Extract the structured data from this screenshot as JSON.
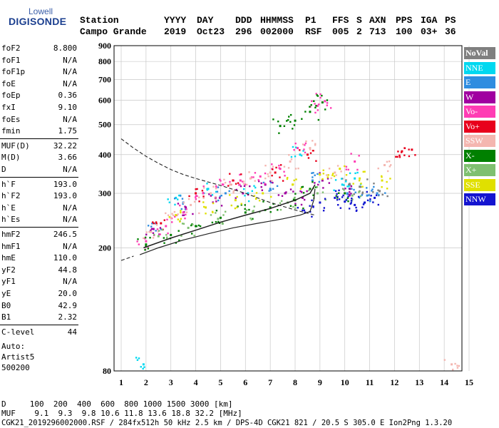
{
  "header": {
    "brand_top": "Lowell",
    "brand": "DIGISONDE",
    "col_labels": [
      "Station",
      "YYYY",
      "DAY",
      "DDD",
      "HHMMSS",
      "P1",
      "FFS",
      "S",
      "AXN",
      "PPS",
      "IGA",
      "PS"
    ],
    "col_values": [
      "Campo Grande",
      "2019",
      "Oct23",
      "296",
      "002000",
      "RSF",
      "005",
      "2",
      "713",
      "100",
      "03+",
      "36"
    ]
  },
  "params": {
    "group1": [
      {
        "name": "foF2",
        "value": "8.800"
      },
      {
        "name": "foF1",
        "value": "N/A"
      },
      {
        "name": "foF1p",
        "value": "N/A"
      },
      {
        "name": "foE",
        "value": "N/A"
      },
      {
        "name": "foEp",
        "value": "0.36"
      },
      {
        "name": "fxI",
        "value": "9.10"
      },
      {
        "name": "foEs",
        "value": "N/A"
      },
      {
        "name": "fmin",
        "value": "1.75"
      }
    ],
    "group2": [
      {
        "name": "MUF(D)",
        "value": "32.22"
      },
      {
        "name": "M(D)",
        "value": "3.66"
      },
      {
        "name": "D",
        "value": "N/A"
      }
    ],
    "group3": [
      {
        "name": "h`F",
        "value": "193.0"
      },
      {
        "name": "h`F2",
        "value": "193.0"
      },
      {
        "name": "h`E",
        "value": "N/A"
      },
      {
        "name": "h`Es",
        "value": "N/A"
      }
    ],
    "group4": [
      {
        "name": "hmF2",
        "value": "246.5"
      },
      {
        "name": "hmF1",
        "value": "N/A"
      },
      {
        "name": "hmE",
        "value": "110.0"
      },
      {
        "name": "yF2",
        "value": "44.8"
      },
      {
        "name": "yF1",
        "value": "N/A"
      },
      {
        "name": "yE",
        "value": "20.0"
      },
      {
        "name": "B0",
        "value": "42.9"
      },
      {
        "name": "B1",
        "value": "2.32"
      }
    ],
    "group5": [
      {
        "name": "C-level",
        "value": "44"
      }
    ],
    "notes": [
      "Auto:",
      "Artist5",
      "500200"
    ]
  },
  "legend": [
    {
      "label": "NoVal",
      "color": "#7f7f7f"
    },
    {
      "label": "NNE",
      "color": "#00d8f0"
    },
    {
      "label": "E",
      "color": "#2f8de0"
    },
    {
      "label": "W",
      "color": "#a000a0"
    },
    {
      "label": "Vo-",
      "color": "#ff3cb4"
    },
    {
      "label": "Vo+",
      "color": "#e8001c"
    },
    {
      "label": "SSW",
      "color": "#f4b6b0"
    },
    {
      "label": "X-",
      "color": "#008000"
    },
    {
      "label": "X+",
      "color": "#7fc070"
    },
    {
      "label": "SSE",
      "color": "#e0e000"
    },
    {
      "label": "NNW",
      "color": "#1414d0"
    }
  ],
  "footer": {
    "line1": "D     100  200  400  600  800 1000 1500 3000 [km]",
    "line2": "MUF    9.1  9.3  9.8 10.6 11.8 13.6 18.8 32.2 [MHz]",
    "line3": "CGK21_2019296002000.RSF / 284fx512h 50 kHz 2.5 km / DPS-4D CGK21 821 / 20.5 S 305.0 E Ion2Png 1.3.20"
  },
  "chart_data": {
    "type": "scatter",
    "title": "",
    "xlabel": "",
    "ylabel": "",
    "xlim": [
      1,
      15
    ],
    "ylim": [
      80,
      900
    ],
    "y_scale": "log",
    "x_ticks": [
      1,
      2,
      3,
      4,
      5,
      6,
      7,
      8,
      9,
      10,
      11,
      12,
      13,
      14,
      15
    ],
    "y_ticks": [
      80,
      200,
      300,
      400,
      500,
      600,
      700,
      800,
      900
    ],
    "grid": true,
    "legend_position": "right",
    "series": [
      {
        "name": "NoVal",
        "color": "#7f7f7f",
        "points": [
          [
            10.2,
            320
          ],
          [
            10.6,
            315
          ],
          [
            11.4,
            305
          ]
        ]
      },
      {
        "name": "NNE",
        "color": "#00d8f0",
        "points": [
          [
            1.9,
            84
          ],
          [
            3.2,
            290
          ],
          [
            4.5,
            310
          ],
          [
            6.1,
            300
          ],
          [
            8.2,
            400
          ],
          [
            9.9,
            320
          ],
          [
            10.4,
            335
          ]
        ]
      },
      {
        "name": "E",
        "color": "#2f8de0",
        "points": [
          [
            2.4,
            240
          ],
          [
            3.5,
            280
          ],
          [
            5.2,
            300
          ],
          [
            7.0,
            310
          ],
          [
            8.7,
            330
          ],
          [
            10.1,
            300
          ],
          [
            10.9,
            295
          ],
          [
            11.3,
            300
          ]
        ]
      },
      {
        "name": "W",
        "color": "#a000a0",
        "points": [
          [
            2.3,
            230
          ],
          [
            3.6,
            270
          ],
          [
            4.8,
            290
          ],
          [
            5.9,
            300
          ],
          [
            6.8,
            320
          ],
          [
            7.6,
            300
          ],
          [
            8.3,
            290
          ],
          [
            9.1,
            330
          ],
          [
            10.2,
            310
          ]
        ]
      },
      {
        "name": "Vo-",
        "color": "#ff3cb4",
        "points": [
          [
            2.0,
            210
          ],
          [
            2.8,
            235
          ],
          [
            3.5,
            260
          ],
          [
            4.3,
            300
          ],
          [
            5.1,
            320
          ],
          [
            5.8,
            330
          ],
          [
            6.6,
            340
          ],
          [
            7.4,
            360
          ],
          [
            8.1,
            420
          ],
          [
            8.9,
            575
          ],
          [
            9.2,
            595
          ],
          [
            10.4,
            380
          ]
        ]
      },
      {
        "name": "Vo+",
        "color": "#e8001c",
        "points": [
          [
            2.6,
            240
          ],
          [
            4.0,
            300
          ],
          [
            5.5,
            330
          ],
          [
            7.2,
            350
          ],
          [
            8.5,
            400
          ],
          [
            12.3,
            410
          ],
          [
            12.7,
            415
          ]
        ]
      },
      {
        "name": "SSW",
        "color": "#f4b6b0",
        "points": [
          [
            2.2,
            225
          ],
          [
            3.0,
            250
          ],
          [
            3.8,
            275
          ],
          [
            4.6,
            300
          ],
          [
            5.4,
            320
          ],
          [
            6.2,
            335
          ],
          [
            7.0,
            350
          ],
          [
            7.8,
            380
          ],
          [
            8.6,
            420
          ],
          [
            9.6,
            350
          ],
          [
            11.6,
            370
          ],
          [
            14.3,
            84
          ]
        ]
      },
      {
        "name": "X-",
        "color": "#008000",
        "points": [
          [
            2.0,
            205
          ],
          [
            3.0,
            220
          ],
          [
            4.0,
            235
          ],
          [
            5.0,
            250
          ],
          [
            6.0,
            260
          ],
          [
            7.0,
            270
          ],
          [
            8.0,
            285
          ],
          [
            8.6,
            310
          ],
          [
            7.4,
            495
          ],
          [
            8.0,
            515
          ],
          [
            8.6,
            550
          ],
          [
            9.1,
            590
          ],
          [
            10.0,
            300
          ]
        ]
      },
      {
        "name": "X+",
        "color": "#7fc070",
        "points": [
          [
            2.5,
            218
          ],
          [
            3.7,
            232
          ],
          [
            4.9,
            248
          ],
          [
            6.3,
            262
          ],
          [
            7.7,
            280
          ],
          [
            8.9,
            300
          ],
          [
            10.3,
            295
          ]
        ]
      },
      {
        "name": "SSE",
        "color": "#e0e000",
        "points": [
          [
            3.2,
            255
          ],
          [
            4.4,
            270
          ],
          [
            5.6,
            285
          ],
          [
            6.7,
            300
          ],
          [
            7.9,
            320
          ],
          [
            9.0,
            345
          ],
          [
            9.8,
            360
          ],
          [
            10.6,
            335
          ],
          [
            11.5,
            330
          ]
        ]
      },
      {
        "name": "NNW",
        "color": "#1414d0",
        "points": [
          [
            8.4,
            260
          ],
          [
            9.0,
            280
          ],
          [
            9.6,
            290
          ],
          [
            10.0,
            282
          ],
          [
            10.4,
            275
          ],
          [
            10.8,
            280
          ],
          [
            11.2,
            290
          ]
        ]
      }
    ],
    "profile_curve": [
      [
        1.75,
        190
      ],
      [
        2.5,
        200
      ],
      [
        3.5,
        212
      ],
      [
        4.5,
        222
      ],
      [
        5.5,
        232
      ],
      [
        6.5,
        240
      ],
      [
        7.5,
        248
      ],
      [
        8.2,
        255
      ],
      [
        8.6,
        262
      ],
      [
        8.75,
        285
      ],
      [
        8.8,
        310
      ]
    ],
    "trace_curve": [
      [
        1.9,
        200
      ],
      [
        3,
        215
      ],
      [
        4,
        228
      ],
      [
        5,
        242
      ],
      [
        6,
        255
      ],
      [
        7,
        268
      ],
      [
        8,
        285
      ],
      [
        8.6,
        300
      ],
      [
        8.8,
        320
      ]
    ],
    "dashed_curve": [
      [
        1,
        450
      ],
      [
        1.5,
        420
      ],
      [
        2,
        395
      ],
      [
        2.5,
        375
      ],
      [
        3,
        358
      ],
      [
        3.5,
        345
      ],
      [
        4,
        335
      ],
      [
        5,
        318
      ],
      [
        6,
        300
      ],
      [
        7,
        280
      ],
      [
        8,
        265
      ],
      [
        8.8,
        255
      ]
    ],
    "dashed_lower": [
      [
        1,
        182
      ],
      [
        1.5,
        188
      ]
    ]
  }
}
